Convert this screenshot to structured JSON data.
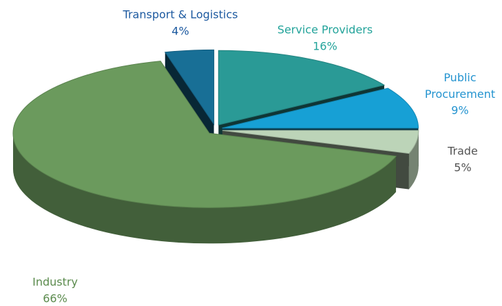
{
  "chart_data": {
    "type": "pie",
    "categories": [
      "Service Providers",
      "Public Procurement",
      "Trade",
      "Industry",
      "Transport & Logistics"
    ],
    "values": [
      16,
      9,
      5,
      66,
      4
    ],
    "value_labels": [
      "16%",
      "9%",
      "5%",
      "66%",
      "4%"
    ],
    "colors": [
      "#2a9a96",
      "#17a0d5",
      "#bcd4b8",
      "#6b9a5d",
      "#186f96"
    ]
  }
}
